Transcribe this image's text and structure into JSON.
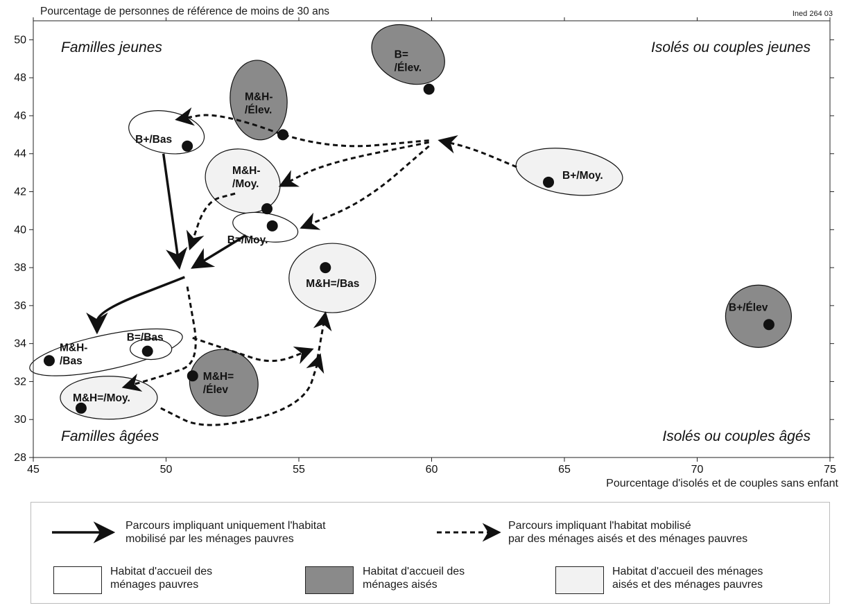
{
  "figure": {
    "reference": "Ined 264 03",
    "colors": {
      "poor": "#ffffff",
      "rich": "#8a8a8a",
      "mixed": "#f2f2f2",
      "ink": "#111111"
    }
  },
  "chart_data": {
    "type": "scatter",
    "title": "",
    "ylabel": "Pourcentage de personnes de référence de moins de 30 ans",
    "xlabel": "Pourcentage d'isolés et de couples sans enfant",
    "xlim": [
      45,
      75
    ],
    "ylim": [
      28,
      51
    ],
    "xticks": [
      45,
      50,
      55,
      60,
      65,
      70,
      75
    ],
    "yticks": [
      28,
      30,
      32,
      34,
      36,
      38,
      40,
      42,
      44,
      46,
      48,
      50
    ],
    "grid": false,
    "quadrants": {
      "top_left": "Familles jeunes",
      "top_right": "Isolés ou couples jeunes",
      "bottom_left": "Familles âgées",
      "bottom_right": "Isolés ou couples âgés"
    },
    "points": [
      {
        "label": "B+/Bas",
        "x": 50.8,
        "y": 44.4,
        "group": "poor"
      },
      {
        "label": "M&H-\n/Élev.",
        "x": 54.4,
        "y": 45.0,
        "group": "rich"
      },
      {
        "label": "B=\n/Élev.",
        "x": 59.9,
        "y": 47.4,
        "group": "rich"
      },
      {
        "label": "M&H-\n/Moy.",
        "x": 53.8,
        "y": 41.1,
        "group": "mixed"
      },
      {
        "label": "B=/Moy.",
        "x": 54.0,
        "y": 40.2,
        "group": "poor"
      },
      {
        "label": "B+/Moy.",
        "x": 64.4,
        "y": 42.5,
        "group": "mixed"
      },
      {
        "label": "M&H=/Bas",
        "x": 56.0,
        "y": 38.0,
        "group": "mixed"
      },
      {
        "label": "B+/Élev",
        "x": 72.7,
        "y": 35.0,
        "group": "rich"
      },
      {
        "label": "M&H-\n/Bas",
        "x": 45.6,
        "y": 33.1,
        "group": "poor"
      },
      {
        "label": "B=/Bas",
        "x": 49.3,
        "y": 33.6,
        "group": "poor"
      },
      {
        "label": "M&H=\n/Élev",
        "x": 51.0,
        "y": 32.3,
        "group": "rich"
      },
      {
        "label": "M&H=/Moy.",
        "x": 46.8,
        "y": 30.6,
        "group": "mixed"
      }
    ],
    "paths": [
      {
        "style": "solid",
        "from": "B+/Bas",
        "to": "convergence",
        "points": [
          [
            49.9,
            44.0
          ],
          [
            50.2,
            41.0
          ],
          [
            50.5,
            38.0
          ]
        ]
      },
      {
        "style": "solid",
        "from": "B=/Moy.",
        "to": "convergence",
        "points": [
          [
            53.0,
            39.7
          ],
          [
            51.0,
            38.0
          ]
        ]
      },
      {
        "style": "solid",
        "from": "convergence",
        "to": "M&H-/Bas",
        "points": [
          [
            50.7,
            37.5
          ],
          [
            47.4,
            35.7
          ],
          [
            47.4,
            34.6
          ]
        ]
      },
      {
        "style": "dashed",
        "from": "B+/Moy.",
        "to": "hub",
        "points": [
          [
            63.2,
            43.3
          ],
          [
            61.5,
            44.3
          ],
          [
            60.3,
            44.7
          ]
        ]
      },
      {
        "style": "dashed",
        "from": "hub",
        "to": "B+/Bas",
        "points": [
          [
            59.9,
            44.7
          ],
          [
            56.0,
            44.2
          ],
          [
            52.0,
            46.2
          ],
          [
            50.4,
            45.8
          ]
        ]
      },
      {
        "style": "dashed",
        "from": "hub",
        "to": "M&H-/Moy.",
        "points": [
          [
            59.9,
            44.6
          ],
          [
            56.0,
            43.5
          ],
          [
            54.3,
            42.3
          ]
        ]
      },
      {
        "style": "dashed",
        "from": "hub",
        "to": "B=/Moy.",
        "points": [
          [
            59.9,
            44.4
          ],
          [
            57.5,
            41.5
          ],
          [
            55.1,
            40.1
          ]
        ]
      },
      {
        "style": "dashed",
        "from": "M&H-/Moy.",
        "to": "convergence",
        "points": [
          [
            52.6,
            41.9
          ],
          [
            51.5,
            41.5
          ],
          [
            50.9,
            39.0
          ]
        ]
      },
      {
        "style": "dashed",
        "from": "convergence",
        "to": "M&H=/Moy.",
        "points": [
          [
            50.8,
            37.0
          ],
          [
            51.3,
            33.0
          ],
          [
            49.9,
            32.3
          ],
          [
            48.4,
            31.7
          ]
        ]
      },
      {
        "style": "dashed",
        "from": "B=/Bas",
        "to": "M&H=/Bas",
        "points": [
          [
            51.0,
            34.3
          ],
          [
            52.5,
            33.6
          ],
          [
            54.0,
            32.9
          ],
          [
            55.5,
            33.7
          ]
        ]
      },
      {
        "style": "dashed",
        "from": "M&H=/Moy.",
        "to": "M&H=/Bas",
        "points": [
          [
            49.8,
            30.6
          ],
          [
            51.5,
            29.4
          ],
          [
            55.2,
            30.7
          ],
          [
            55.8,
            33.4
          ]
        ]
      },
      {
        "style": "dashed",
        "from": "M&H=/Bas",
        "to": "M&H=/Bas",
        "points": [
          [
            55.7,
            33.2
          ],
          [
            56.0,
            35.6
          ]
        ]
      }
    ]
  },
  "legend": {
    "solid_text": "Parcours impliquant uniquement l'habitat\nmobilisé par les ménages pauvres",
    "dashed_text": "Parcours impliquant l'habitat mobilisé\npar des ménages aisés et des ménages pauvres",
    "poor_text": "Habitat d'accueil des\nménages pauvres",
    "rich_text": "Habitat d'accueil des\nménages aisés",
    "mixed_text": "Habitat d'accueil des ménages\naisés et des ménages pauvres"
  }
}
